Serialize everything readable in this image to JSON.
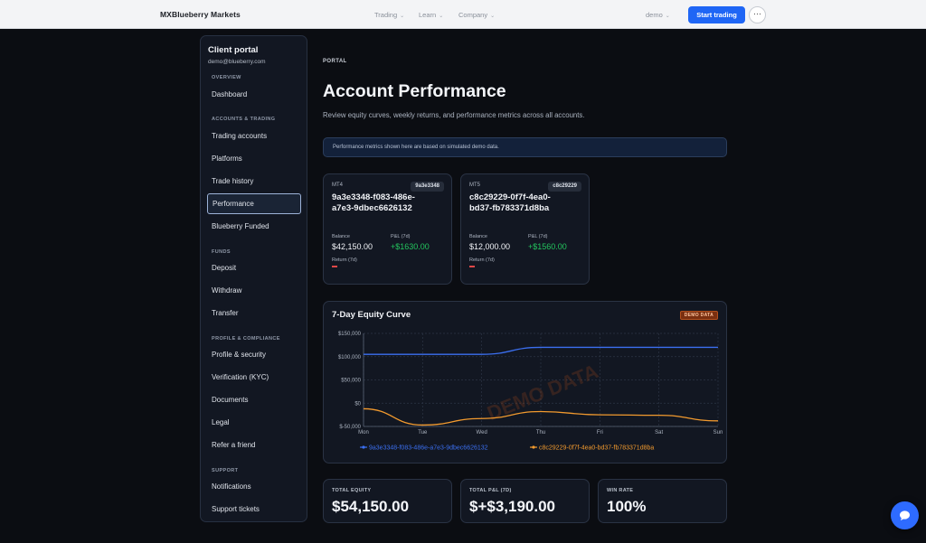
{
  "nav": {
    "brand": "MXBlueberry Markets",
    "links": [
      "Trading",
      "Learn",
      "Company"
    ],
    "account_label": "demo",
    "start_label": "Start trading",
    "more_label": "···"
  },
  "sidebar": {
    "title": "Client portal",
    "email": "demo@blueberry.com",
    "sections": [
      "OVERVIEW",
      "ACCOUNTS & TRADING",
      "FUNDS",
      "PROFILE & COMPLIANCE",
      "SUPPORT"
    ],
    "items": [
      "Dashboard",
      "Trading accounts",
      "Platforms",
      "Trade history",
      "Performance",
      "Blueberry Funded",
      "Deposit",
      "Withdraw",
      "Transfer",
      "Profile & security",
      "Verification (KYC)",
      "Documents",
      "Legal",
      "Refer a friend",
      "Notifications",
      "Support tickets"
    ],
    "active_item": "Performance"
  },
  "page": {
    "kicker": "PORTAL",
    "title": "Account Performance",
    "subtitle": "Review equity curves, weekly returns, and performance metrics across all accounts.",
    "notice": "Performance metrics shown here are based on simulated demo data."
  },
  "accounts": [
    {
      "platform": "MT4",
      "badge": "9a3e3348",
      "id": "9a3e3348-f083-486e-a7e3-9dbec6626132",
      "balance_label": "Balance",
      "balance": "$42,150.00",
      "pnl_label": "P&L (7d)",
      "pnl": "+$1630.00",
      "return_label": "Return (7d)"
    },
    {
      "platform": "MT5",
      "badge": "c8c29229",
      "id": "c8c29229-0f7f-4ea0-bd37-fb783371d8ba",
      "balance_label": "Balance",
      "balance": "$12,000.00",
      "pnl_label": "P&L (7d)",
      "pnl": "+$1560.00",
      "return_label": "Return (7d)"
    }
  ],
  "chart": {
    "title": "7-Day Equity Curve",
    "badge": "DEMO DATA",
    "watermark": "DEMO DATA"
  },
  "chart_data": {
    "type": "line",
    "title": "7-Day Equity Curve",
    "categories": [
      "Mon",
      "Tue",
      "Wed",
      "Thu",
      "Fri",
      "Sat",
      "Sun"
    ],
    "series": [
      {
        "name": "9a3e3348-f083-486e-a7e3-9dbec6626132",
        "color": "#3b6ff0",
        "values": [
          105000,
          105000,
          105000,
          120000,
          120000,
          120000,
          120000
        ]
      },
      {
        "name": "c8c29229-0f7f-4ea0-bd37-fb783371d8ba",
        "color": "#f29a2e",
        "values": [
          -12000,
          -47000,
          -33000,
          -18000,
          -25000,
          -26000,
          -38000
        ]
      }
    ],
    "yticks": [
      150000,
      100000,
      50000,
      0,
      -50000
    ],
    "ytick_labels": [
      "$150,000",
      "$100,000",
      "$50,000",
      "$0",
      "$-50,000"
    ],
    "ylim": [
      -50000,
      150000
    ],
    "grid": true,
    "legend": "bottom"
  },
  "stats": [
    {
      "label": "TOTAL EQUITY",
      "value": "$54,150.00"
    },
    {
      "label": "TOTAL P&L (7D)",
      "value": "$+$3,190.00"
    },
    {
      "label": "WIN RATE",
      "value": "100%"
    }
  ],
  "colors": {
    "accent": "#1f66f5",
    "positive": "#23c55e",
    "negative": "#e04848",
    "series1": "#3b6ff0",
    "series2": "#f29a2e"
  }
}
